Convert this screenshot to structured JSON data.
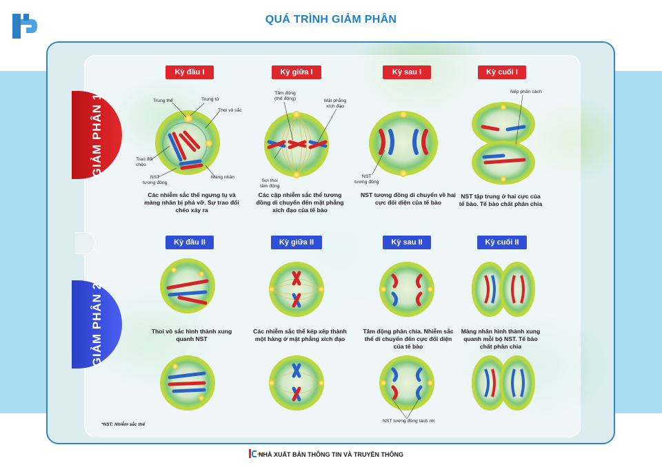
{
  "page": {
    "title": "QUÁ TRÌNH GIẢM PHÂN",
    "publisher": "NHÀ XUẤT BẢN THÔNG TIN VÀ TRUYỀN THÔNG",
    "footnote": "*NST: Nhiễm sắc thể"
  },
  "meiosis1": {
    "label": "GIẢM PHÂN 1",
    "color": "#e0262d",
    "phases": [
      {
        "label": "Kỳ đầu I",
        "desc": "Các nhiễm sắc thể ngưng tụ và màng nhân bị phá vỡ. Sự trao đổi chéo xảy ra"
      },
      {
        "label": "Kỳ giữa I",
        "desc": "Các cặp nhiễm sắc thể tương đồng di chuyển đến mặt phẳng xích đạo của tế bào"
      },
      {
        "label": "Kỳ sau I",
        "desc": "NST tương đồng di chuyển về hai cực đối diện của tế bào"
      },
      {
        "label": "Kỳ cuối I",
        "desc": "NST tập trung ở hai cực của tế bào. Tế bào chất phân chia"
      }
    ],
    "annotations": {
      "trung_the": "Trung thể",
      "trung_tu": "Trung tử",
      "thoi_vo_sac": "Thoi vô sắc",
      "trao_doi_cheo": "Trao đổi\nchéo",
      "mang_nhan": "Màng nhân",
      "nst_tuong_dong_1": "NST\ntương đồng",
      "tam_dong": "Tâm động\n(thể động)",
      "mat_phang_xich_dao": "Mặt phẳng\nxích đạo",
      "soi_thoi_tam_dong": "Sợi thoi\ntâm động",
      "nst_tuong_dong_2": "NST\ntương đồng",
      "nep_phan_cach": "Nếp phân cách"
    }
  },
  "meiosis2": {
    "label": "GIẢM PHÂN 2",
    "color": "#2f50d6",
    "phases": [
      {
        "label": "Kỳ đầu II",
        "desc": "Thoi vô sắc hình thành xung quanh NST"
      },
      {
        "label": "Kỳ giữa II",
        "desc": "Các nhiễm sắc thể kép xếp thành một hàng ở mặt phẳng xích đạo"
      },
      {
        "label": "Kỳ sau II",
        "desc": "Tâm động phân chia. Nhiễm sắc thể di chuyển đến cực đối diện của tế bào"
      },
      {
        "label": "Kỳ cuối II",
        "desc": "Màng nhân hình thành xung quanh mỗi bộ NST. Tế bào chất phân chia"
      }
    ],
    "annotations": {
      "nst_tuong_dong_tach_roi": "NST tương đồng tách rời"
    }
  },
  "colors": {
    "cell_outer": "#c9e04a",
    "cell_inner": "#3fae8a",
    "chromosome_red": "#d4242a",
    "chromosome_blue": "#2a63c7",
    "centrosome": "#f6d31c"
  }
}
